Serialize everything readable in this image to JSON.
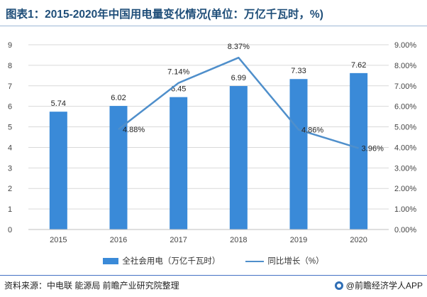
{
  "title": "图表1：2015-2020年中国用电量变化情况(单位：万亿千瓦时，%)",
  "source": "资料来源：中电联 能源局 前瞻产业研究院整理",
  "brand": "@前瞻经济学人APP",
  "colors": {
    "bar": "#3a8ad8",
    "line": "#4f8fcb",
    "grid": "#d9d9d9",
    "axis_text": "#444444"
  },
  "chart_data": {
    "type": "bar",
    "categories": [
      "2015",
      "2016",
      "2017",
      "2018",
      "2019",
      "2020"
    ],
    "series": [
      {
        "name": "全社会用电（万亿千瓦时）",
        "type": "bar",
        "axis": "left",
        "values": [
          5.74,
          6.02,
          6.45,
          6.99,
          7.33,
          7.62
        ],
        "labels": [
          "5.74",
          "6.02",
          "6.45",
          "6.99",
          "7.33",
          "7.62"
        ]
      },
      {
        "name": "同比增长（%）",
        "type": "line",
        "axis": "right",
        "x": [
          "2016",
          "2017",
          "2018",
          "2019",
          "2020"
        ],
        "values": [
          4.88,
          7.14,
          8.37,
          4.86,
          3.96
        ],
        "labels": [
          "4.88%",
          "7.14%",
          "8.37%",
          "4.86%",
          "3.96%"
        ]
      }
    ],
    "y_left": {
      "min": 0,
      "max": 9,
      "ticks": [
        "0",
        "1",
        "2",
        "3",
        "4",
        "5",
        "6",
        "7",
        "8",
        "9"
      ]
    },
    "y_right": {
      "min": 0,
      "max": 9,
      "ticks": [
        "0.00%",
        "1.00%",
        "2.00%",
        "3.00%",
        "4.00%",
        "5.00%",
        "6.00%",
        "7.00%",
        "8.00%",
        "9.00%"
      ]
    },
    "grid": true,
    "legend": "bottom"
  }
}
